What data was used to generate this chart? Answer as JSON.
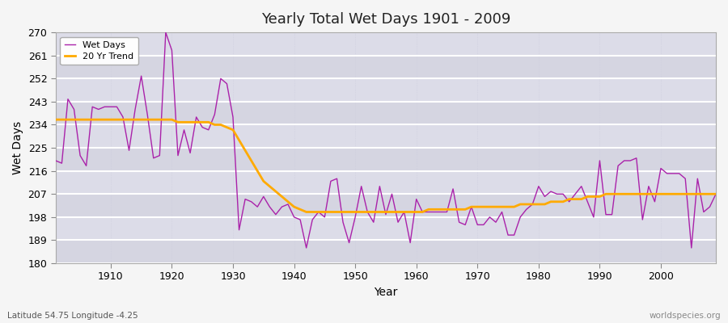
{
  "title": "Yearly Total Wet Days 1901 - 2009",
  "xlabel": "Year",
  "ylabel": "Wet Days",
  "bottom_left_label": "Latitude 54.75 Longitude -4.25",
  "bottom_right_label": "worldspecies.org",
  "ylim": [
    180,
    270
  ],
  "yticks": [
    180,
    189,
    198,
    207,
    216,
    225,
    234,
    243,
    252,
    261,
    270
  ],
  "xlim": [
    1901,
    2009
  ],
  "xticks": [
    1910,
    1920,
    1930,
    1940,
    1950,
    1960,
    1970,
    1980,
    1990,
    2000
  ],
  "line_color": "#aa22aa",
  "trend_color": "#ffaa00",
  "plot_bg_color": "#dcdce8",
  "fig_bg_color": "#f5f5f5",
  "legend_wet": "Wet Days",
  "legend_trend": "20 Yr Trend",
  "wet_days": [
    220,
    219,
    244,
    240,
    222,
    218,
    241,
    240,
    241,
    241,
    241,
    237,
    224,
    240,
    253,
    238,
    221,
    222,
    270,
    263,
    222,
    232,
    223,
    237,
    233,
    232,
    238,
    252,
    250,
    237,
    193,
    205,
    204,
    202,
    206,
    202,
    199,
    202,
    203,
    198,
    197,
    186,
    197,
    200,
    198,
    212,
    213,
    196,
    188,
    198,
    210,
    200,
    196,
    210,
    199,
    207,
    196,
    200,
    188,
    205,
    200,
    200,
    200,
    200,
    200,
    209,
    196,
    195,
    202,
    195,
    195,
    198,
    196,
    200,
    191,
    191,
    198,
    201,
    203,
    210,
    206,
    208,
    207,
    207,
    204,
    207,
    210,
    204,
    198,
    220,
    199,
    199,
    218,
    220,
    220,
    221,
    197,
    210,
    204,
    217,
    215,
    215,
    215,
    213,
    186,
    213,
    200,
    202,
    207
  ],
  "trend_days": [
    236,
    236,
    236,
    236,
    236,
    236,
    236,
    236,
    236,
    236,
    236,
    236,
    236,
    236,
    236,
    236,
    236,
    236,
    236,
    236,
    235,
    235,
    235,
    235,
    235,
    235,
    234,
    234,
    233,
    232,
    228,
    224,
    220,
    216,
    212,
    210,
    208,
    206,
    204,
    202,
    201,
    200,
    200,
    200,
    200,
    200,
    200,
    200,
    200,
    200,
    200,
    200,
    200,
    200,
    200,
    200,
    200,
    200,
    200,
    200,
    200,
    201,
    201,
    201,
    201,
    201,
    201,
    201,
    202,
    202,
    202,
    202,
    202,
    202,
    202,
    202,
    203,
    203,
    203,
    203,
    203,
    204,
    204,
    204,
    205,
    205,
    205,
    206,
    206,
    206,
    207,
    207,
    207,
    207,
    207,
    207,
    207,
    207,
    207,
    207,
    207,
    207,
    207,
    207,
    207,
    207,
    207,
    207,
    207
  ]
}
